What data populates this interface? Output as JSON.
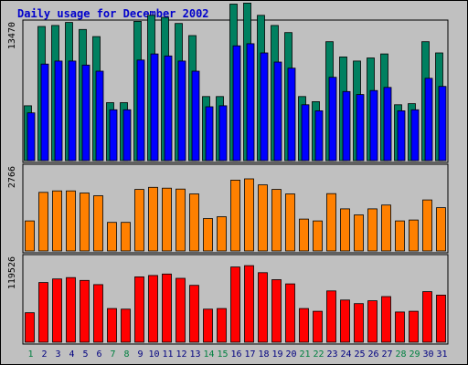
{
  "chart_data": {
    "type": "bar",
    "title": "Daily usage for December 2002",
    "categories": [
      "1",
      "2",
      "3",
      "4",
      "5",
      "6",
      "7",
      "8",
      "9",
      "10",
      "11",
      "12",
      "13",
      "14",
      "15",
      "16",
      "17",
      "18",
      "19",
      "20",
      "21",
      "22",
      "23",
      "24",
      "25",
      "26",
      "27",
      "28",
      "29",
      "30",
      "31"
    ],
    "weekend_days": [
      "1",
      "7",
      "8",
      "14",
      "15",
      "21",
      "22",
      "28",
      "29"
    ],
    "panels": [
      {
        "ylabel": "13470",
        "ymax": 13470,
        "series": [
          {
            "color": "#008060",
            "values": [
              5400,
              13200,
              13300,
              13600,
              12900,
              12200,
              5700,
              5700,
              13700,
              14300,
              14100,
              13500,
              12300,
              6300,
              6300,
              15400,
              15500,
              14300,
              13300,
              12600,
              6300,
              5800,
              11700,
              10200,
              9800,
              10100,
              10500,
              5500,
              5600,
              11700,
              10600
            ]
          },
          {
            "color": "#0000ff",
            "values": [
              4700,
              9500,
              9800,
              9800,
              9400,
              8800,
              5000,
              5000,
              9900,
              10500,
              10300,
              9800,
              8800,
              5300,
              5400,
              11300,
              11500,
              10600,
              9700,
              9100,
              5500,
              4900,
              8200,
              6800,
              6500,
              6900,
              7200,
              4900,
              5000,
              8100,
              7300
            ]
          }
        ]
      },
      {
        "ylabel": "2766",
        "ymax": 2766,
        "series": [
          {
            "color": "#ff8000",
            "values": [
              1000,
              1950,
              2000,
              2000,
              1930,
              1840,
              950,
              950,
              2050,
              2120,
              2090,
              2060,
              1900,
              1080,
              1140,
              2360,
              2400,
              2200,
              2050,
              1900,
              1060,
              1000,
              1910,
              1400,
              1200,
              1400,
              1530,
              1000,
              1030,
              1700,
              1440
            ]
          }
        ]
      },
      {
        "ylabel": "119526",
        "ymax": 119526,
        "series": [
          {
            "color": "#ff0000",
            "values": [
              42000,
              85000,
              90000,
              92000,
              88000,
              82000,
              48000,
              47000,
              93000,
              95000,
              97000,
              91000,
              81000,
              47000,
              48000,
              107000,
              109000,
              99000,
              89000,
              83000,
              48000,
              44000,
              73000,
              60000,
              55000,
              59000,
              65000,
              43000,
              44000,
              72000,
              67000
            ]
          }
        ]
      }
    ]
  }
}
